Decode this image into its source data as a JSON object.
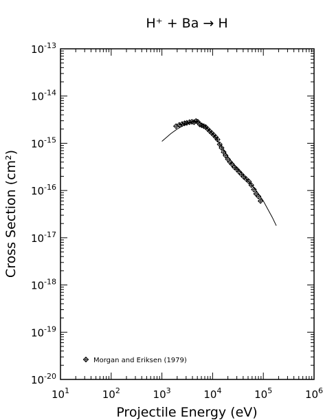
{
  "chart_data": {
    "type": "scatter",
    "title": "H⁺ + Ba → H",
    "xlabel": "Projectile Energy (eV)",
    "ylabel": "Cross Section (cm²)",
    "xscale": "log",
    "yscale": "log",
    "xlim": [
      10,
      1000000
    ],
    "ylim": [
      1e-20,
      1e-13
    ],
    "x_ticks": [
      {
        "value": 10,
        "base": "10",
        "exp": "1"
      },
      {
        "value": 100,
        "base": "10",
        "exp": "2"
      },
      {
        "value": 1000,
        "base": "10",
        "exp": "3"
      },
      {
        "value": 10000,
        "base": "10",
        "exp": "4"
      },
      {
        "value": 100000,
        "base": "10",
        "exp": "5"
      },
      {
        "value": 1000000,
        "base": "10",
        "exp": "6"
      }
    ],
    "y_ticks": [
      {
        "value": 1e-13,
        "base": "10",
        "exp": "-13"
      },
      {
        "value": 1e-14,
        "base": "10",
        "exp": "-14"
      },
      {
        "value": 1e-15,
        "base": "10",
        "exp": "-15"
      },
      {
        "value": 1e-16,
        "base": "10",
        "exp": "-16"
      },
      {
        "value": 1e-17,
        "base": "10",
        "exp": "-17"
      },
      {
        "value": 1e-18,
        "base": "10",
        "exp": "-18"
      },
      {
        "value": 1e-19,
        "base": "10",
        "exp": "-19"
      },
      {
        "value": 1e-20,
        "base": "10",
        "exp": "-20"
      }
    ],
    "legend": {
      "position": "bottom-left",
      "label": "Morgan and Eriksen (1979)"
    },
    "series": [
      {
        "name": "Morgan and Eriksen (1979)",
        "kind": "points",
        "marker": "diamond-plus",
        "x": [
          1900,
          2200,
          2500,
          2800,
          3100,
          3500,
          3900,
          4300,
          4700,
          5100,
          5600,
          6100,
          6700,
          7300,
          8000,
          8800,
          9600,
          10500,
          11500,
          12500,
          13800,
          15000,
          16500,
          18000,
          20000,
          22000,
          24000,
          27000,
          30000,
          33000,
          37000,
          41000,
          46000,
          52000,
          58000,
          65000,
          72000,
          80000,
          88000
        ],
        "y": [
          2.3e-15,
          2.45e-15,
          2.55e-15,
          2.65e-15,
          2.7e-15,
          2.8e-15,
          2.85e-15,
          2.8e-15,
          2.95e-15,
          2.85e-15,
          2.5e-15,
          2.4e-15,
          2.3e-15,
          2.2e-15,
          2e-15,
          1.8e-15,
          1.65e-15,
          1.5e-15,
          1.35e-15,
          1.2e-15,
          9.5e-16,
          8e-16,
          6.5e-16,
          5.5e-16,
          4.6e-16,
          4e-16,
          3.6e-16,
          3.1e-16,
          2.8e-16,
          2.5e-16,
          2.2e-16,
          1.95e-16,
          1.75e-16,
          1.55e-16,
          1.3e-16,
          1.05e-16,
          8.5e-17,
          7.5e-17,
          6e-17
        ]
      },
      {
        "name": "",
        "kind": "line",
        "x": [
          1000,
          1500,
          2000,
          3000,
          4000,
          5000,
          6000,
          8000,
          10000,
          15000,
          20000,
          30000,
          50000,
          70000,
          100000,
          150000,
          180000
        ],
        "y": [
          1.1e-15,
          1.6e-15,
          2e-15,
          2.55e-15,
          2.85e-15,
          2.9e-15,
          2.6e-15,
          2.05e-15,
          1.6e-15,
          8.5e-16,
          5.2e-16,
          3e-16,
          1.6e-16,
          1.05e-16,
          6e-17,
          2.7e-17,
          1.8e-17
        ]
      }
    ]
  }
}
